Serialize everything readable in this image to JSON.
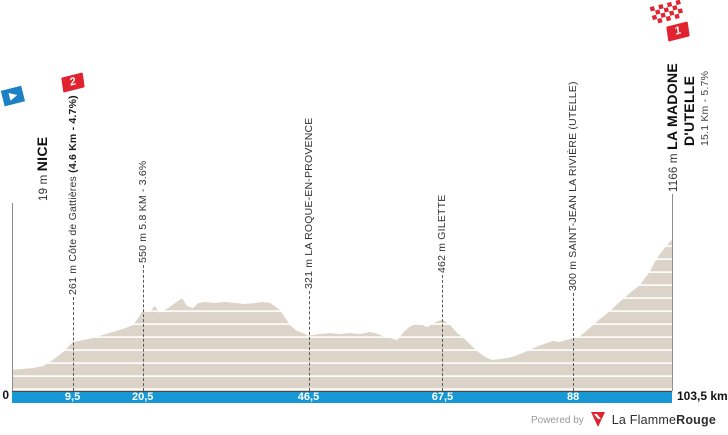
{
  "chart_data": {
    "type": "area",
    "x_unit": "km",
    "y_unit": "m",
    "x_range": [
      0,
      103.5
    ],
    "grid": "horizontal-stripes",
    "profile_km_elev": [
      [
        0,
        19
      ],
      [
        1.3,
        26
      ],
      [
        3.3,
        35
      ],
      [
        4.9,
        53
      ],
      [
        6.4,
        106
      ],
      [
        8,
        176
      ],
      [
        9.5,
        261
      ],
      [
        11.1,
        282
      ],
      [
        12.7,
        300
      ],
      [
        14.3,
        327
      ],
      [
        15.8,
        353
      ],
      [
        17.4,
        380
      ],
      [
        19,
        415
      ],
      [
        20.1,
        503
      ],
      [
        20.5,
        550
      ],
      [
        21.6,
        530
      ],
      [
        22.4,
        583
      ],
      [
        23.2,
        521
      ],
      [
        24.5,
        565
      ],
      [
        25.6,
        609
      ],
      [
        26.7,
        653
      ],
      [
        27.4,
        583
      ],
      [
        28.4,
        565
      ],
      [
        29.2,
        609
      ],
      [
        30.3,
        618
      ],
      [
        31.8,
        609
      ],
      [
        33.4,
        618
      ],
      [
        35,
        609
      ],
      [
        36.5,
        600
      ],
      [
        38.1,
        609
      ],
      [
        39.2,
        618
      ],
      [
        40.5,
        609
      ],
      [
        42,
        547
      ],
      [
        43.6,
        415
      ],
      [
        44.7,
        362
      ],
      [
        45.6,
        344
      ],
      [
        46.5,
        321
      ],
      [
        48.3,
        335
      ],
      [
        49.9,
        344
      ],
      [
        51.4,
        335
      ],
      [
        53,
        344
      ],
      [
        54.6,
        335
      ],
      [
        56.1,
        353
      ],
      [
        57.4,
        335
      ],
      [
        58.5,
        309
      ],
      [
        59.3,
        300
      ],
      [
        60.4,
        282
      ],
      [
        61.3,
        344
      ],
      [
        62.3,
        397
      ],
      [
        62.9,
        415
      ],
      [
        63.5,
        432
      ],
      [
        64.3,
        415
      ],
      [
        65.1,
        397
      ],
      [
        66,
        424
      ],
      [
        66.8,
        450
      ],
      [
        67.5,
        462
      ],
      [
        68.7,
        415
      ],
      [
        69.8,
        344
      ],
      [
        70.7,
        309
      ],
      [
        71.8,
        247
      ],
      [
        72.9,
        185
      ],
      [
        74.2,
        132
      ],
      [
        75.3,
        106
      ],
      [
        76.5,
        115
      ],
      [
        77.8,
        124
      ],
      [
        78.9,
        141
      ],
      [
        80.1,
        168
      ],
      [
        81.2,
        194
      ],
      [
        82.5,
        229
      ],
      [
        83.9,
        256
      ],
      [
        84.8,
        274
      ],
      [
        85.9,
        265
      ],
      [
        86.9,
        282
      ],
      [
        88,
        300
      ],
      [
        89.1,
        318
      ],
      [
        90.6,
        388
      ],
      [
        92.2,
        468
      ],
      [
        93.8,
        538
      ],
      [
        95.3,
        618
      ],
      [
        96.9,
        697
      ],
      [
        98.5,
        768
      ],
      [
        100,
        883
      ],
      [
        100.8,
        971
      ],
      [
        101.6,
        1041
      ],
      [
        102.6,
        1112
      ],
      [
        103.5,
        1166
      ]
    ],
    "markers": [
      {
        "type": "start",
        "km": 0,
        "elevation_m": 19,
        "prefix": "19 m ",
        "name": "NICE"
      },
      {
        "type": "climb",
        "km": 9.5,
        "elevation_m": 261,
        "label_regular": "261 m Côte de Gattières ",
        "label_bold": "(4.6 Km - 4.7%)",
        "category": "2"
      },
      {
        "type": "point",
        "km": 20.5,
        "elevation_m": 550,
        "label": "550 m 5.8 KM - 3.6%"
      },
      {
        "type": "point",
        "km": 46.5,
        "elevation_m": 321,
        "label": "321 m LA ROQUE-EN-PROVENCE"
      },
      {
        "type": "point",
        "km": 67.5,
        "elevation_m": 462,
        "label": "462 m GILETTE"
      },
      {
        "type": "point",
        "km": 88,
        "elevation_m": 300,
        "label": "300 m SAINT-JEAN LA RIVIÈRE (UTELLE)"
      },
      {
        "type": "finish",
        "km": 103.5,
        "elevation_m": 1166,
        "prefix": "1166 m ",
        "name_lines": [
          "LA MADONE",
          "D'UTELLE"
        ],
        "detail": "15.1 Km - 5.7%",
        "category": "1"
      }
    ],
    "distance_ticks": [
      {
        "km": 0,
        "label": "0"
      },
      {
        "km": 9.5,
        "label": "9,5"
      },
      {
        "km": 20.5,
        "label": "20,5"
      },
      {
        "km": 46.5,
        "label": "46,5"
      },
      {
        "km": 67.5,
        "label": "67,5"
      },
      {
        "km": 88,
        "label": "88"
      }
    ],
    "end_distance_label": "103,5 km"
  },
  "footer": {
    "powered_by": "Powered by",
    "brand_regular": "La Flamme",
    "brand_bold": "Rouge"
  },
  "colors": {
    "profile_fill": "#dcd4c8",
    "stripe": "#fbfaf8",
    "distance_bar": "#1798d5",
    "accent_red": "#e0232e",
    "start_flag_blue": "#1b80c4",
    "marker_line": "#595959",
    "text_dark": "#1c1c1c",
    "muted": "#9a9a9a"
  }
}
